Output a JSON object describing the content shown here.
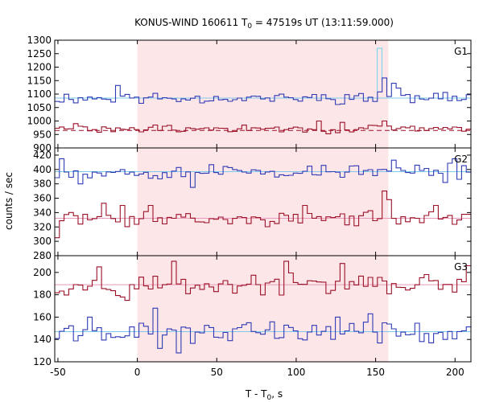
{
  "title": {
    "prefix": "KONUS-WIND 160611 T",
    "sub": "0",
    "suffix": " = 47519s UT (13:11:59.000)"
  },
  "ylabel": "counts / sec",
  "xlabel": {
    "prefix": "T - T",
    "sub": "0",
    "suffix": ", s"
  },
  "colors": {
    "blue": "#2e3bb5",
    "red": "#9c1028",
    "blue_bg": "#7ec9ea",
    "red_bg": "#9c1028",
    "g2_red_bg": "#e899b8",
    "g1_peak": "#7fd6ea",
    "shade": "#fde6e8",
    "axis": "#000000"
  },
  "chart_data": {
    "type": "line",
    "title": "KONUS-WIND 160611 T0 = 47519s UT (13:11:59.000)",
    "xlabel": "T - T0, s",
    "ylabel": "counts / sec",
    "x_range": [
      -52,
      210
    ],
    "x_ticks": [
      -50,
      0,
      50,
      100,
      150,
      200
    ],
    "shaded_interval": [
      0,
      158
    ],
    "bin_width_s": 2.944,
    "panels": [
      {
        "name": "G1",
        "y_range": [
          900,
          1300
        ],
        "y_ticks": [
          900,
          950,
          1000,
          1050,
          1100,
          1150,
          1200,
          1250,
          1300
        ],
        "series": [
          {
            "name": "blue",
            "background": 1085,
            "mean": 1085,
            "amplitude": 16,
            "seed": 11,
            "spikes": [
              [
                -13,
                1132
              ],
              [
                152,
                1108
              ],
              [
                156,
                1150
              ],
              [
                157,
                1160
              ],
              [
                160,
                1140
              ],
              [
                163,
                1122
              ]
            ]
          },
          {
            "name": "red",
            "background": 965,
            "mean": 970,
            "amplitude": 12,
            "seed": 29,
            "spikes": [
              [
                -38,
                990
              ],
              [
                115,
                1000
              ],
              [
                130,
                995
              ],
              [
                156,
                1000
              ]
            ]
          }
        ],
        "peak_bin": {
          "x": [
            151,
            154
          ],
          "value": 1270
        }
      },
      {
        "name": "G2",
        "y_range": [
          280,
          430
        ],
        "y_ticks": [
          280,
          300,
          320,
          340,
          360,
          380,
          400,
          420
        ],
        "series": [
          {
            "name": "blue",
            "background": 397,
            "mean": 397,
            "amplitude": 8,
            "seed": 53,
            "spikes": [
              [
                -48,
                415
              ],
              [
                -35,
                380
              ],
              [
                35,
                375
              ],
              [
                161,
                413
              ],
              [
                195,
                382
              ],
              [
                200,
                415
              ]
            ]
          },
          {
            "name": "red",
            "background": 332,
            "mean": 332,
            "amplitude": 8,
            "seed": 71,
            "spikes": [
              [
                -50,
                305
              ],
              [
                -20,
                353
              ],
              [
                -10,
                350
              ],
              [
                9,
                350
              ],
              [
                105,
                350
              ],
              [
                155,
                370
              ],
              [
                158,
                358
              ],
              [
                189,
                350
              ]
            ]
          }
        ]
      },
      {
        "name": "G3",
        "y_range": [
          120,
          215
        ],
        "y_ticks": [
          120,
          140,
          160,
          180,
          200
        ],
        "series": [
          {
            "name": "red",
            "background": 189,
            "mean": 189,
            "amplitude": 7,
            "seed": 97,
            "spikes": [
              [
                -25,
                205
              ],
              [
                -5,
                175
              ],
              [
                22,
                210
              ],
              [
                95,
                210
              ],
              [
                130,
                208
              ],
              [
                208,
                206
              ]
            ]
          },
          {
            "name": "blue",
            "background": 147,
            "mean": 147,
            "amplitude": 7,
            "seed": 131,
            "spikes": [
              [
                -30,
                160
              ],
              [
                12,
                168
              ],
              [
                15,
                132
              ],
              [
                26,
                128
              ],
              [
                125,
                160
              ],
              [
                148,
                163
              ],
              [
                185,
                137
              ]
            ]
          }
        ]
      }
    ]
  }
}
